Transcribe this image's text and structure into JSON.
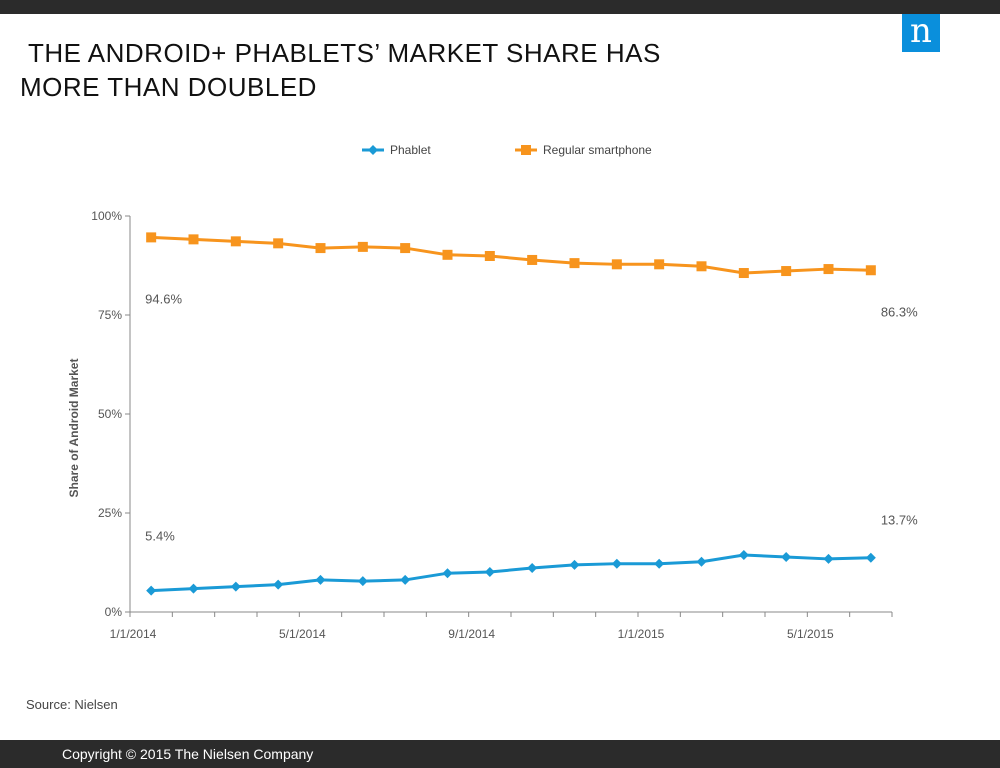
{
  "brand": {
    "logo_letter": "n",
    "logo_color": "#0a8fdc"
  },
  "title_lines": [
    "THE ANDROID+ PHABLETS’ MARKET SHARE HAS",
    "MORE THAN DOUBLED"
  ],
  "source": "Source: Nielsen",
  "copyright": "Copyright © 2015 The Nielsen Company",
  "chart_data": {
    "type": "line",
    "ylabel": "Share of Android Market",
    "xlabel": "",
    "y_ticks": [
      "0%",
      "25%",
      "50%",
      "75%",
      "100%"
    ],
    "ylim": [
      0,
      100
    ],
    "x_tick_labels": [
      "1/1/2014",
      "5/1/2014",
      "9/1/2014",
      "1/1/2015",
      "5/1/2015"
    ],
    "x_dates": [
      "2014-01",
      "2014-02",
      "2014-03",
      "2014-04",
      "2014-05",
      "2014-06",
      "2014-07",
      "2014-08",
      "2014-09",
      "2014-10",
      "2014-11",
      "2014-12",
      "2015-01",
      "2015-02",
      "2015-03",
      "2015-04",
      "2015-05",
      "2015-06"
    ],
    "grid": false,
    "legend_position": "top",
    "series": [
      {
        "name": "Phablet",
        "color": "#1a9ad6",
        "marker": "diamond",
        "values": [
          5.4,
          5.9,
          6.4,
          6.9,
          8.1,
          7.8,
          8.1,
          9.8,
          10.1,
          11.1,
          11.9,
          12.2,
          12.2,
          12.7,
          14.4,
          13.9,
          13.4,
          13.7
        ],
        "data_labels": [
          {
            "index": 0,
            "text": "5.4%"
          },
          {
            "index": 17,
            "text": "13.7%"
          }
        ]
      },
      {
        "name": "Regular smartphone",
        "color": "#f7941d",
        "marker": "square",
        "values": [
          94.6,
          94.1,
          93.6,
          93.1,
          91.9,
          92.2,
          91.9,
          90.2,
          89.9,
          88.9,
          88.1,
          87.8,
          87.8,
          87.3,
          85.6,
          86.1,
          86.6,
          86.3
        ],
        "data_labels": [
          {
            "index": 0,
            "text": "94.6%"
          },
          {
            "index": 17,
            "text": "86.3%"
          }
        ]
      }
    ]
  }
}
